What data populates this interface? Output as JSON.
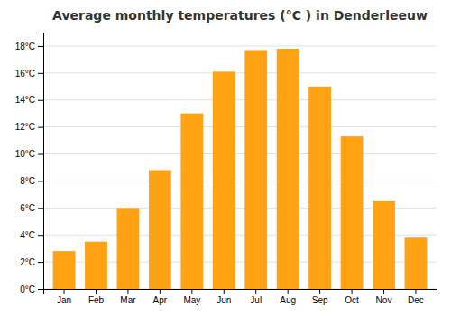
{
  "chart_data": {
    "type": "bar",
    "title": "Average monthly temperatures (°C ) in Denderleeuw",
    "categories": [
      "Jan",
      "Feb",
      "Mar",
      "Apr",
      "May",
      "Jun",
      "Jul",
      "Aug",
      "Sep",
      "Oct",
      "Nov",
      "Dec"
    ],
    "values": [
      2.8,
      3.5,
      6.0,
      8.8,
      13.0,
      16.1,
      17.7,
      17.8,
      15.0,
      11.3,
      6.5,
      3.8
    ],
    "color": "#ffa314",
    "ylim": [
      0,
      19
    ],
    "yticks": [
      {
        "value": 0,
        "label": "0°C"
      },
      {
        "value": 2,
        "label": "2°C"
      },
      {
        "value": 4,
        "label": "4°C"
      },
      {
        "value": 6,
        "label": "6°C"
      },
      {
        "value": 8,
        "label": "8°C"
      },
      {
        "value": 10,
        "label": "10°C"
      },
      {
        "value": 12,
        "label": "12°C"
      },
      {
        "value": 14,
        "label": "14°C"
      },
      {
        "value": 16,
        "label": "16°C"
      },
      {
        "value": 18,
        "label": "18°C"
      }
    ],
    "grid": true
  }
}
